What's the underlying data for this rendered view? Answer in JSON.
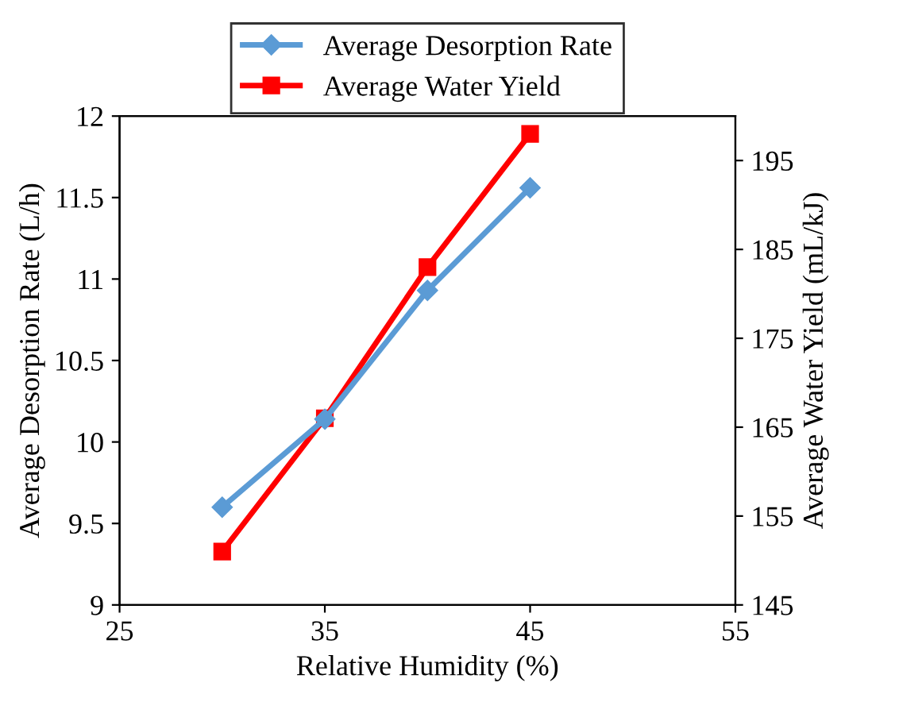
{
  "chart_data": {
    "type": "line",
    "xlabel": "Relative Humidity (%)",
    "ylabel": "Average Desorption Rate (L/h)",
    "y2label": "Average Water Yield (mL/kJ)",
    "x": [
      30,
      35,
      40,
      45
    ],
    "series": [
      {
        "name": "Average Desorption Rate",
        "color": "#5b9bd5",
        "marker": "diamond",
        "values": [
          9.6,
          10.14,
          10.93,
          11.56
        ]
      },
      {
        "name": "Average Water Yield",
        "color": "#ff0000",
        "marker": "square",
        "axis": "y2",
        "values": [
          151,
          166,
          183,
          198
        ]
      }
    ],
    "xlim": [
      25,
      55
    ],
    "xticks": [
      25,
      35,
      45,
      55
    ],
    "ylim": [
      9,
      12
    ],
    "yticks": [
      9,
      9.5,
      10,
      10.5,
      11,
      11.5,
      12
    ],
    "y2lim": [
      145,
      200
    ],
    "y2ticks": [
      145,
      155,
      165,
      175,
      185,
      195
    ],
    "grid": false,
    "legend": "top",
    "line_style": "solid"
  }
}
